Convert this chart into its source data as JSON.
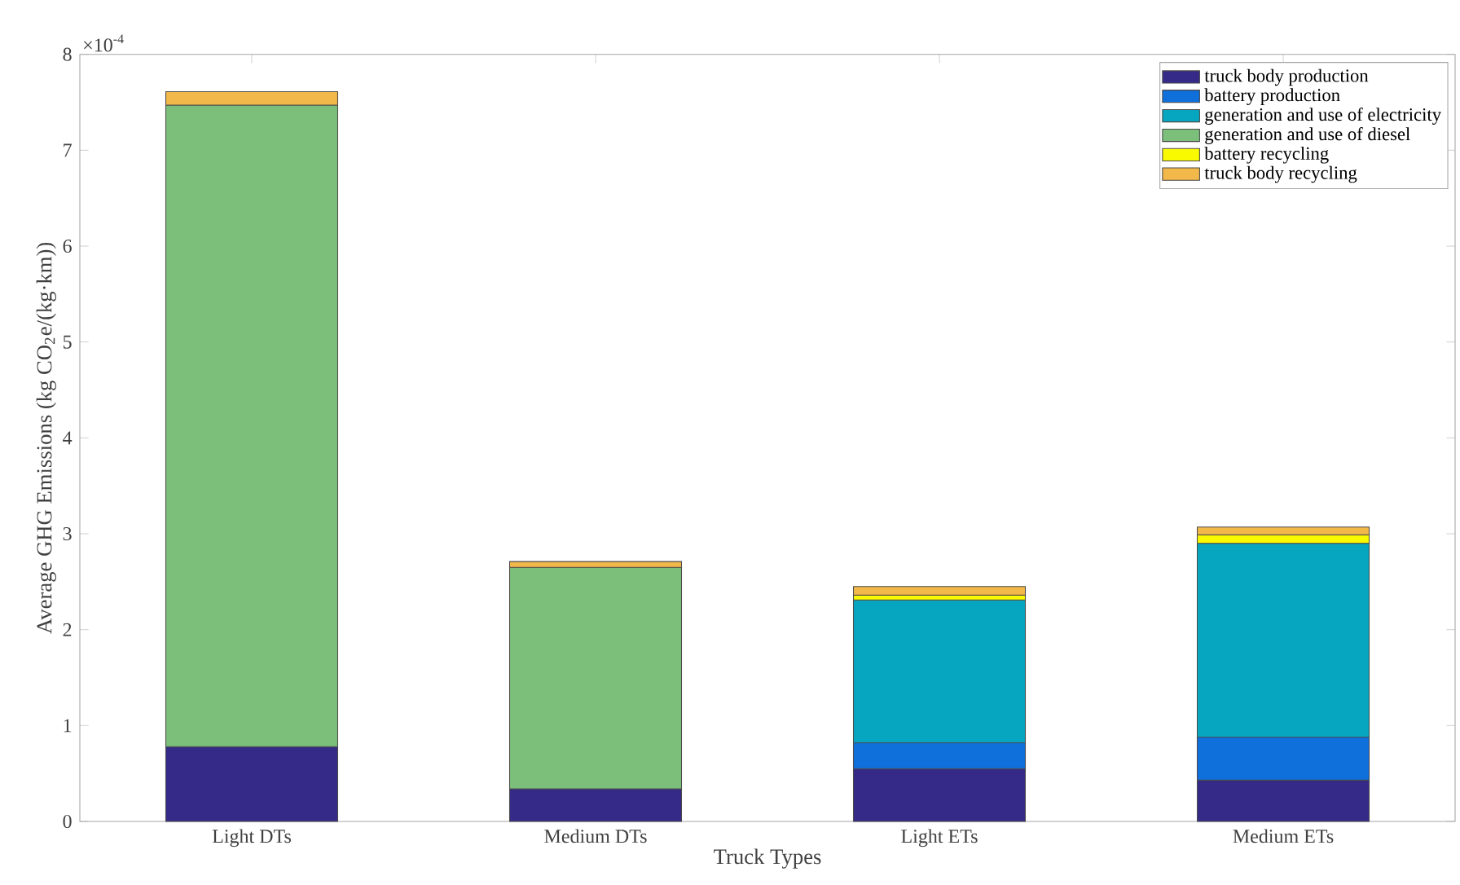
{
  "chart_data": {
    "type": "bar",
    "stacked": true,
    "categories": [
      "Light DTs",
      "Medium DTs",
      "Light ETs",
      "Medium ETs"
    ],
    "series": [
      {
        "name": "truck body production",
        "color": "#352a87",
        "values": [
          0.78,
          0.34,
          0.55,
          0.43
        ]
      },
      {
        "name": "battery production",
        "color": "#0f6fdb",
        "values": [
          null,
          null,
          0.27,
          0.45
        ]
      },
      {
        "name": "generation and use of electricity",
        "color": "#06a6c0",
        "values": [
          null,
          null,
          1.49,
          2.02
        ]
      },
      {
        "name": "generation and use of diesel",
        "color": "#7cbf7b",
        "values": [
          6.69,
          2.31,
          null,
          null
        ]
      },
      {
        "name": "battery recycling",
        "color": "#f9f900",
        "values": [
          null,
          null,
          0.05,
          0.09
        ]
      },
      {
        "name": "truck body recycling",
        "color": "#f2b84a",
        "values": [
          0.14,
          0.06,
          0.09,
          0.08
        ]
      }
    ],
    "xlabel": "Truck Types",
    "ylabel": "Average GHG Emissions (kg CO$_{2}$e/(kg·km))",
    "ylim": [
      0,
      8
    ],
    "yticks": [
      0,
      1,
      2,
      3,
      4,
      5,
      6,
      7,
      8
    ],
    "legend": "top right",
    "annotations": [
      "×10$^{-4}$"
    ]
  }
}
